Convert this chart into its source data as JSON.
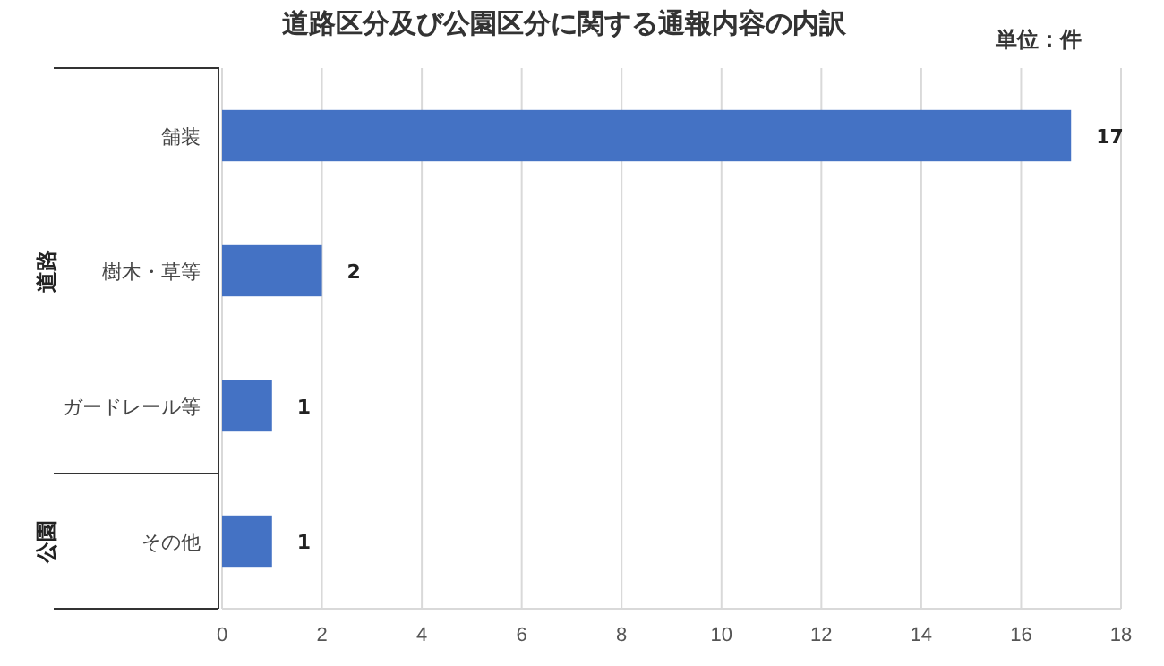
{
  "chart_data": {
    "type": "bar",
    "orientation": "horizontal",
    "title": "道路区分及び公園区分に関する通報内容の内訳",
    "categories": [
      "舗装",
      "樹木・草等",
      "ガードレール等",
      "その他"
    ],
    "values": [
      17,
      2,
      1,
      1
    ],
    "color": "#4472c4",
    "data_labels": true,
    "xlim": [
      0,
      18
    ],
    "xticks": [
      0,
      2,
      4,
      6,
      8,
      10,
      12,
      14,
      16,
      18
    ],
    "grid": "x",
    "annotations": [
      "単位：件",
      "道路",
      "公園"
    ]
  }
}
